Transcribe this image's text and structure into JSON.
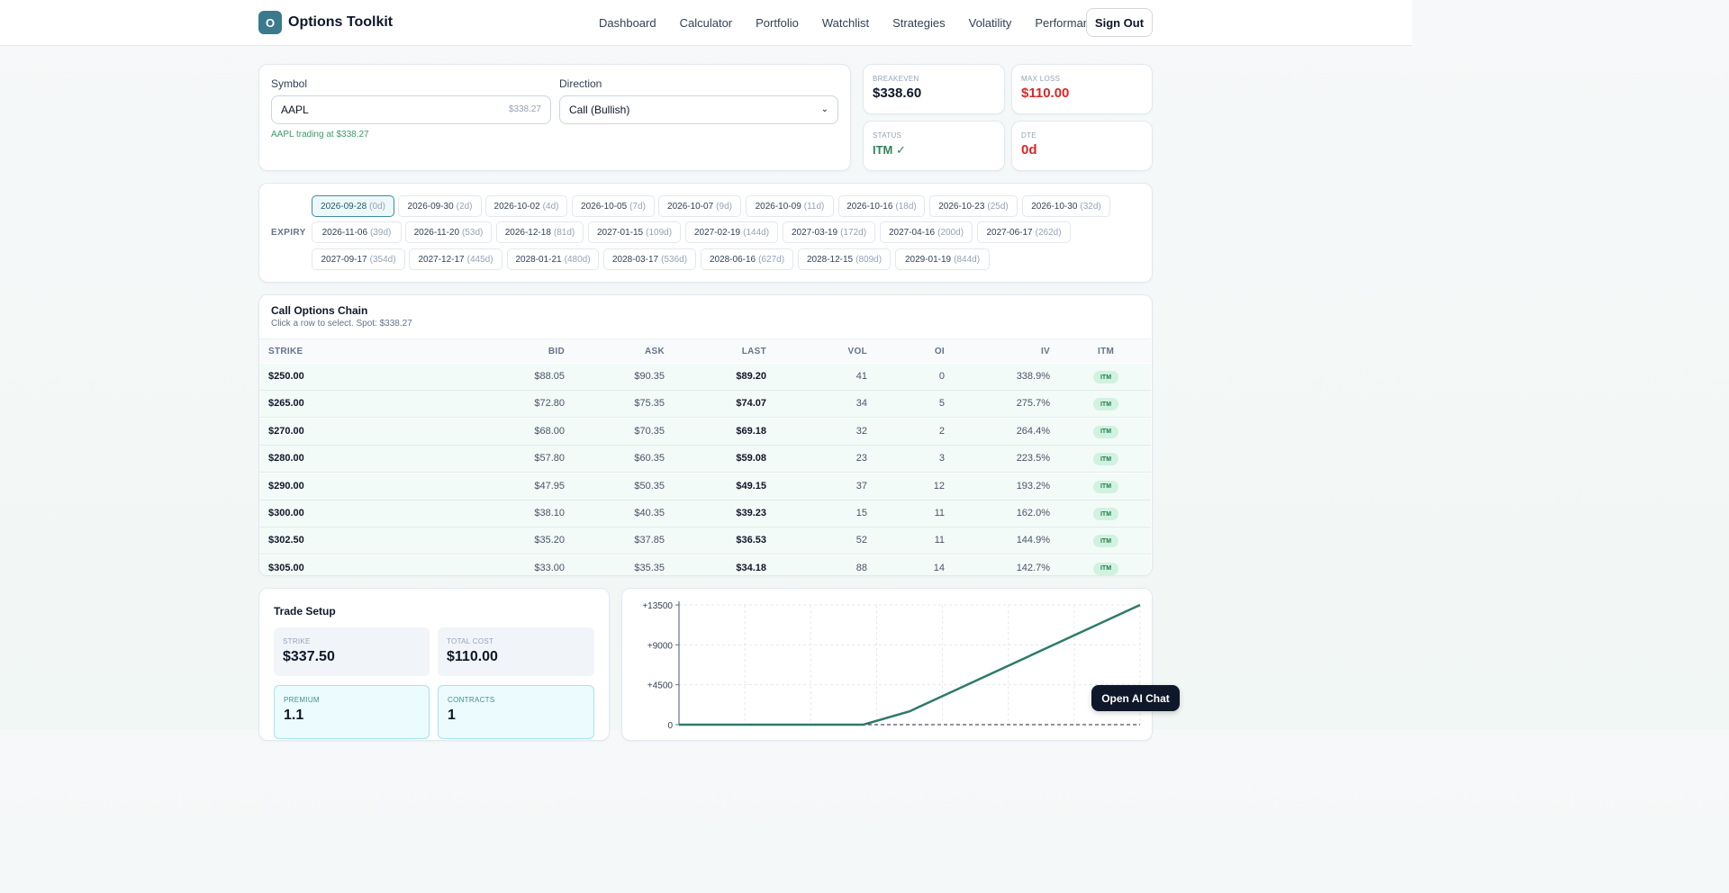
{
  "brand": {
    "logo_letter": "O",
    "name": "Options Toolkit"
  },
  "nav": [
    "Dashboard",
    "Calculator",
    "Portfolio",
    "Watchlist",
    "Strategies",
    "Volatility",
    "Performance"
  ],
  "signout_label": "Sign Out",
  "form": {
    "symbol_label": "Symbol",
    "symbol_value": "AAPL",
    "symbol_price_hint": "$338.27",
    "trading_note": "AAPL trading at $338.27",
    "direction_label": "Direction",
    "direction_value": "Call (Bullish)"
  },
  "stats": {
    "breakeven": {
      "label": "BREAKEVEN",
      "value": "$338.60",
      "color": "#0f172a"
    },
    "max_loss": {
      "label": "MAX LOSS",
      "value": "$110.00",
      "color": "#dc2626"
    },
    "status": {
      "label": "STATUS",
      "value": "ITM ✓",
      "color": "#2f855a"
    },
    "dte": {
      "label": "DTE",
      "value": "0d",
      "color": "#dc2626"
    }
  },
  "expiry": {
    "label": "EXPIRY",
    "selected": 0,
    "dates": [
      [
        "2026-09-28",
        "(0d)"
      ],
      [
        "2026-09-30",
        "(2d)"
      ],
      [
        "2026-10-02",
        "(4d)"
      ],
      [
        "2026-10-05",
        "(7d)"
      ],
      [
        "2026-10-07",
        "(9d)"
      ],
      [
        "2026-10-09",
        "(11d)"
      ],
      [
        "2026-10-16",
        "(18d)"
      ],
      [
        "2026-10-23",
        "(25d)"
      ],
      [
        "2026-10-30",
        "(32d)"
      ],
      [
        "2026-11-06",
        "(39d)"
      ],
      [
        "2026-11-20",
        "(53d)"
      ],
      [
        "2026-12-18",
        "(81d)"
      ],
      [
        "2027-01-15",
        "(109d)"
      ],
      [
        "2027-02-19",
        "(144d)"
      ],
      [
        "2027-03-19",
        "(172d)"
      ],
      [
        "2027-04-16",
        "(200d)"
      ],
      [
        "2027-06-17",
        "(262d)"
      ],
      [
        "2027-09-17",
        "(354d)"
      ],
      [
        "2027-12-17",
        "(445d)"
      ],
      [
        "2028-01-21",
        "(480d)"
      ],
      [
        "2028-03-17",
        "(536d)"
      ],
      [
        "2028-06-16",
        "(627d)"
      ],
      [
        "2028-12-15",
        "(809d)"
      ],
      [
        "2029-01-19",
        "(844d)"
      ]
    ]
  },
  "chain": {
    "title": "Call Options Chain",
    "subtitle": "Click a row to select. Spot: $338.27",
    "columns": [
      "STRIKE",
      "BID",
      "ASK",
      "LAST",
      "VOL",
      "OI",
      "IV",
      "ITM"
    ],
    "itm_badge": "ITM",
    "rows": [
      [
        "$250.00",
        "$88.05",
        "$90.35",
        "$89.20",
        "41",
        "0",
        "338.9%"
      ],
      [
        "$265.00",
        "$72.80",
        "$75.35",
        "$74.07",
        "34",
        "5",
        "275.7%"
      ],
      [
        "$270.00",
        "$68.00",
        "$70.35",
        "$69.18",
        "32",
        "2",
        "264.4%"
      ],
      [
        "$280.00",
        "$57.80",
        "$60.35",
        "$59.08",
        "23",
        "3",
        "223.5%"
      ],
      [
        "$290.00",
        "$47.95",
        "$50.35",
        "$49.15",
        "37",
        "12",
        "193.2%"
      ],
      [
        "$300.00",
        "$38.10",
        "$40.35",
        "$39.23",
        "15",
        "11",
        "162.0%"
      ],
      [
        "$302.50",
        "$35.20",
        "$37.85",
        "$36.53",
        "52",
        "11",
        "144.9%"
      ],
      [
        "$305.00",
        "$33.00",
        "$35.35",
        "$34.18",
        "88",
        "14",
        "142.7%"
      ]
    ]
  },
  "setup": {
    "title": "Trade Setup",
    "strike": {
      "label": "STRIKE",
      "value": "$337.50"
    },
    "total_cost": {
      "label": "TOTAL COST",
      "value": "$110.00"
    },
    "premium": {
      "label": "PREMIUM",
      "value": "1.1"
    },
    "contracts": {
      "label": "CONTRACTS",
      "value": "1"
    }
  },
  "chart_data": {
    "type": "line",
    "title": "",
    "xlabel": "",
    "ylabel": "",
    "ylim": [
      0,
      13500
    ],
    "yticks": [
      "+13500",
      "+9000",
      "+4500",
      "0"
    ],
    "grid": true,
    "line_color": "#2f7a6a",
    "x": [
      0,
      0.28,
      0.4,
      0.5,
      1.0
    ],
    "y": [
      0,
      0,
      0,
      1500,
      13500
    ]
  },
  "ai_chat_label": "Open AI Chat"
}
